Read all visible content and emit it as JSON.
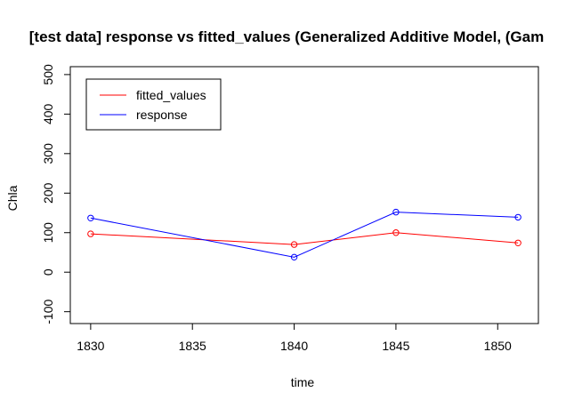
{
  "chart_data": {
    "type": "line",
    "title": "[test data] response vs fitted_values (Generalized Additive Model, (Gam",
    "xlabel": "time",
    "ylabel": "Chla",
    "x": [
      1830,
      1840,
      1845,
      1851
    ],
    "xlim": [
      1829,
      1852
    ],
    "ylim": [
      -130,
      520
    ],
    "xticks": [
      1830,
      1835,
      1840,
      1845,
      1850
    ],
    "yticks": [
      -100,
      0,
      100,
      200,
      300,
      400,
      500
    ],
    "grid": false,
    "legend_position": "top-left",
    "series": [
      {
        "name": "fitted_values",
        "color": "#ff0000",
        "values": [
          97,
          70,
          100,
          74
        ]
      },
      {
        "name": "response",
        "color": "#0000ff",
        "values": [
          137,
          38,
          152,
          139
        ]
      }
    ]
  }
}
